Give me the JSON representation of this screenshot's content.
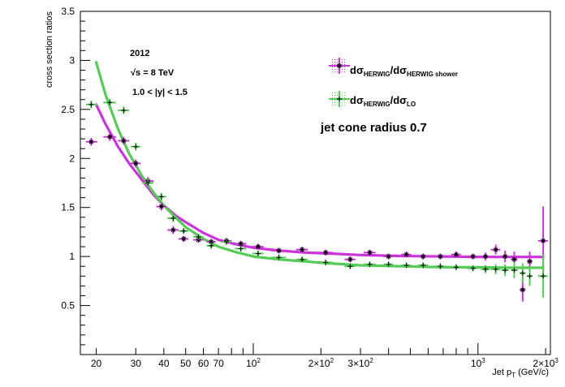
{
  "chart_data": {
    "type": "scatter",
    "xlabel_main": "Jet p",
    "xlabel_sub": "T",
    "xlabel_unit": " (GeV/c)",
    "ylabel": "cross section ratios",
    "x_scale": "log",
    "xlim": [
      17,
      2100
    ],
    "ylim": [
      0,
      3.5
    ],
    "x_ticks": [
      {
        "v": 20,
        "label": "20"
      },
      {
        "v": 30,
        "label": "30"
      },
      {
        "v": 40,
        "label": "40"
      },
      {
        "v": 50,
        "label": "50"
      },
      {
        "v": 60,
        "label": "60"
      },
      {
        "v": 70,
        "label": "70"
      },
      {
        "v": 100,
        "label": "10",
        "sup": "2"
      },
      {
        "v": 200,
        "label": "2×10",
        "sup": "2"
      },
      {
        "v": 300,
        "label": "3×10",
        "sup": "2"
      },
      {
        "v": 1000,
        "label": "10",
        "sup": "3"
      },
      {
        "v": 2000,
        "label": "2×10",
        "sup": "3"
      }
    ],
    "y_ticks": [
      {
        "v": 0.5,
        "label": "0.5"
      },
      {
        "v": 1,
        "label": "1"
      },
      {
        "v": 1.5,
        "label": "1.5"
      },
      {
        "v": 2,
        "label": "2"
      },
      {
        "v": 2.5,
        "label": "2.5"
      },
      {
        "v": 3,
        "label": "3"
      },
      {
        "v": 3.5,
        "label": "3.5"
      }
    ],
    "annotations": {
      "year": "2012",
      "energy": "√s = 8 TeV",
      "rapidity": "1.0 < |y| < 1.5",
      "cone": "jet cone radius 0.7"
    },
    "legend": [
      {
        "num": "dσ",
        "num_sub": "HERWIG",
        "den": "/dσ",
        "den_sub": "HERWIG shower",
        "color": "#cc33dd",
        "marker": "*"
      },
      {
        "num": "dσ",
        "num_sub": "HERWIG",
        "den": "/dσ",
        "den_sub": "LO",
        "color": "#55cc55",
        "marker": "+"
      }
    ],
    "series": [
      {
        "color": "#cc33dd",
        "marker": "*",
        "fit": [
          [
            20,
            2.55
          ],
          [
            22,
            2.35
          ],
          [
            25,
            2.12
          ],
          [
            28,
            1.95
          ],
          [
            32,
            1.78
          ],
          [
            36,
            1.63
          ],
          [
            40,
            1.52
          ],
          [
            45,
            1.42
          ],
          [
            50,
            1.35
          ],
          [
            60,
            1.24
          ],
          [
            70,
            1.17
          ],
          [
            85,
            1.12
          ],
          [
            100,
            1.09
          ],
          [
            130,
            1.06
          ],
          [
            170,
            1.04
          ],
          [
            220,
            1.03
          ],
          [
            300,
            1.015
          ],
          [
            450,
            1.005
          ],
          [
            700,
            1.0
          ],
          [
            1000,
            0.995
          ],
          [
            1400,
            0.995
          ],
          [
            1950,
            0.995
          ]
        ],
        "points": [
          {
            "x": 19,
            "y": 2.17,
            "xerr": [
              18,
              20.2
            ],
            "yerr": 0.04
          },
          {
            "x": 23,
            "y": 2.22,
            "xerr": [
              21.5,
              24.5
            ],
            "yerr": 0.04
          },
          {
            "x": 26.5,
            "y": 2.18,
            "xerr": [
              25,
              28
            ],
            "yerr": 0.04
          },
          {
            "x": 30,
            "y": 1.95,
            "xerr": [
              28.5,
              31.5
            ],
            "yerr": 0.04
          },
          {
            "x": 34,
            "y": 1.77,
            "xerr": [
              32,
              36
            ],
            "yerr": 0.04
          },
          {
            "x": 39,
            "y": 1.51,
            "xerr": [
              37,
              41
            ],
            "yerr": 0.04
          },
          {
            "x": 44,
            "y": 1.27,
            "xerr": [
              41.5,
              46.5
            ],
            "yerr": 0.04
          },
          {
            "x": 49,
            "y": 1.18,
            "xerr": [
              46.5,
              51.5
            ],
            "yerr": 0.03
          },
          {
            "x": 57,
            "y": 1.17,
            "xerr": [
              54,
              60
            ],
            "yerr": 0.03
          },
          {
            "x": 65,
            "y": 1.15,
            "xerr": [
              62,
              68
            ],
            "yerr": 0.03
          },
          {
            "x": 76,
            "y": 1.16,
            "xerr": [
              72,
              80
            ],
            "yerr": 0.03
          },
          {
            "x": 88,
            "y": 1.13,
            "xerr": [
              83,
              93
            ],
            "yerr": 0.03
          },
          {
            "x": 105,
            "y": 1.1,
            "xerr": [
              99,
              111
            ],
            "yerr": 0.03
          },
          {
            "x": 130,
            "y": 1.06,
            "xerr": [
              120,
              140
            ],
            "yerr": 0.03
          },
          {
            "x": 165,
            "y": 1.07,
            "xerr": [
              155,
              175
            ],
            "yerr": 0.03
          },
          {
            "x": 210,
            "y": 1.04,
            "xerr": [
              195,
              225
            ],
            "yerr": 0.03
          },
          {
            "x": 270,
            "y": 0.97,
            "xerr": [
              255,
              285
            ],
            "yerr": 0.03
          },
          {
            "x": 330,
            "y": 1.04,
            "xerr": [
              310,
              350
            ],
            "yerr": 0.03
          },
          {
            "x": 400,
            "y": 1.0,
            "xerr": [
              380,
              420
            ],
            "yerr": 0.03
          },
          {
            "x": 480,
            "y": 1.02,
            "xerr": [
              455,
              505
            ],
            "yerr": 0.03
          },
          {
            "x": 570,
            "y": 1.0,
            "xerr": [
              540,
              600
            ],
            "yerr": 0.03
          },
          {
            "x": 680,
            "y": 1.0,
            "xerr": [
              645,
              715
            ],
            "yerr": 0.03
          },
          {
            "x": 800,
            "y": 1.02,
            "xerr": [
              760,
              840
            ],
            "yerr": 0.03
          },
          {
            "x": 950,
            "y": 1.0,
            "xerr": [
              900,
              1000
            ],
            "yerr": 0.03
          },
          {
            "x": 1080,
            "y": 1.0,
            "xerr": [
              1030,
              1130
            ],
            "yerr": 0.04
          },
          {
            "x": 1200,
            "y": 1.07,
            "xerr": [
              1140,
              1260
            ],
            "yerr": 0.05
          },
          {
            "x": 1320,
            "y": 1.0,
            "xerr": [
              1270,
              1370
            ],
            "yerr": 0.06
          },
          {
            "x": 1450,
            "y": 0.97,
            "xerr": [
              1400,
              1500
            ],
            "yerr": 0.08
          },
          {
            "x": 1580,
            "y": 0.66,
            "xerr": [
              1530,
              1630
            ],
            "yerr": 0.12
          },
          {
            "x": 1700,
            "y": 0.95,
            "xerr": [
              1650,
              1750
            ],
            "yerr": 0.1
          },
          {
            "x": 1950,
            "y": 1.16,
            "xerr": [
              1850,
              2050
            ],
            "yerr": 0.35
          }
        ]
      },
      {
        "color": "#55cc55",
        "marker": "+",
        "fit": [
          [
            20,
            2.98
          ],
          [
            22,
            2.65
          ],
          [
            25,
            2.3
          ],
          [
            28,
            2.05
          ],
          [
            32,
            1.82
          ],
          [
            36,
            1.65
          ],
          [
            40,
            1.52
          ],
          [
            45,
            1.4
          ],
          [
            50,
            1.3
          ],
          [
            60,
            1.18
          ],
          [
            70,
            1.1
          ],
          [
            85,
            1.04
          ],
          [
            100,
            1.0
          ],
          [
            130,
            0.97
          ],
          [
            170,
            0.95
          ],
          [
            220,
            0.93
          ],
          [
            300,
            0.91
          ],
          [
            450,
            0.9
          ],
          [
            700,
            0.89
          ],
          [
            1000,
            0.89
          ],
          [
            1400,
            0.885
          ],
          [
            1950,
            0.885
          ]
        ],
        "points": [
          {
            "x": 19,
            "y": 2.55,
            "xerr": [
              18,
              20.2
            ],
            "yerr": 0.04
          },
          {
            "x": 23,
            "y": 2.57,
            "xerr": [
              21.5,
              24.5
            ],
            "yerr": 0.04
          },
          {
            "x": 26.5,
            "y": 2.49,
            "xerr": [
              25,
              28
            ],
            "yerr": 0.04
          },
          {
            "x": 30,
            "y": 2.12,
            "xerr": [
              28.5,
              31.5
            ],
            "yerr": 0.04
          },
          {
            "x": 34,
            "y": 1.75,
            "xerr": [
              32,
              36
            ],
            "yerr": 0.04
          },
          {
            "x": 39,
            "y": 1.61,
            "xerr": [
              37,
              41
            ],
            "yerr": 0.04
          },
          {
            "x": 44,
            "y": 1.39,
            "xerr": [
              41.5,
              46.5
            ],
            "yerr": 0.04
          },
          {
            "x": 49,
            "y": 1.26,
            "xerr": [
              46.5,
              51.5
            ],
            "yerr": 0.03
          },
          {
            "x": 57,
            "y": 1.2,
            "xerr": [
              54,
              60
            ],
            "yerr": 0.03
          },
          {
            "x": 65,
            "y": 1.11,
            "xerr": [
              62,
              68
            ],
            "yerr": 0.03
          },
          {
            "x": 76,
            "y": 1.15,
            "xerr": [
              72,
              80
            ],
            "yerr": 0.03
          },
          {
            "x": 88,
            "y": 1.08,
            "xerr": [
              83,
              93
            ],
            "yerr": 0.03
          },
          {
            "x": 105,
            "y": 1.03,
            "xerr": [
              99,
              111
            ],
            "yerr": 0.03
          },
          {
            "x": 130,
            "y": 0.99,
            "xerr": [
              120,
              140
            ],
            "yerr": 0.03
          },
          {
            "x": 165,
            "y": 0.97,
            "xerr": [
              155,
              175
            ],
            "yerr": 0.03
          },
          {
            "x": 210,
            "y": 0.94,
            "xerr": [
              195,
              225
            ],
            "yerr": 0.03
          },
          {
            "x": 270,
            "y": 0.9,
            "xerr": [
              255,
              285
            ],
            "yerr": 0.03
          },
          {
            "x": 330,
            "y": 0.92,
            "xerr": [
              310,
              350
            ],
            "yerr": 0.03
          },
          {
            "x": 400,
            "y": 0.92,
            "xerr": [
              380,
              420
            ],
            "yerr": 0.03
          },
          {
            "x": 480,
            "y": 0.91,
            "xerr": [
              455,
              505
            ],
            "yerr": 0.03
          },
          {
            "x": 570,
            "y": 0.91,
            "xerr": [
              540,
              600
            ],
            "yerr": 0.03
          },
          {
            "x": 680,
            "y": 0.9,
            "xerr": [
              645,
              715
            ],
            "yerr": 0.03
          },
          {
            "x": 800,
            "y": 0.89,
            "xerr": [
              760,
              840
            ],
            "yerr": 0.03
          },
          {
            "x": 950,
            "y": 0.88,
            "xerr": [
              900,
              1000
            ],
            "yerr": 0.03
          },
          {
            "x": 1080,
            "y": 0.87,
            "xerr": [
              1030,
              1130
            ],
            "yerr": 0.04
          },
          {
            "x": 1200,
            "y": 0.87,
            "xerr": [
              1140,
              1260
            ],
            "yerr": 0.05
          },
          {
            "x": 1320,
            "y": 0.86,
            "xerr": [
              1270,
              1370
            ],
            "yerr": 0.06
          },
          {
            "x": 1450,
            "y": 0.86,
            "xerr": [
              1400,
              1500
            ],
            "yerr": 0.08
          },
          {
            "x": 1580,
            "y": 0.83,
            "xerr": [
              1530,
              1630
            ],
            "yerr": 0.1
          },
          {
            "x": 1700,
            "y": 0.8,
            "xerr": [
              1650,
              1750
            ],
            "yerr": 0.1
          },
          {
            "x": 1950,
            "y": 0.8,
            "xerr": [
              1850,
              2050
            ],
            "yerr": 0.22
          }
        ]
      }
    ]
  }
}
